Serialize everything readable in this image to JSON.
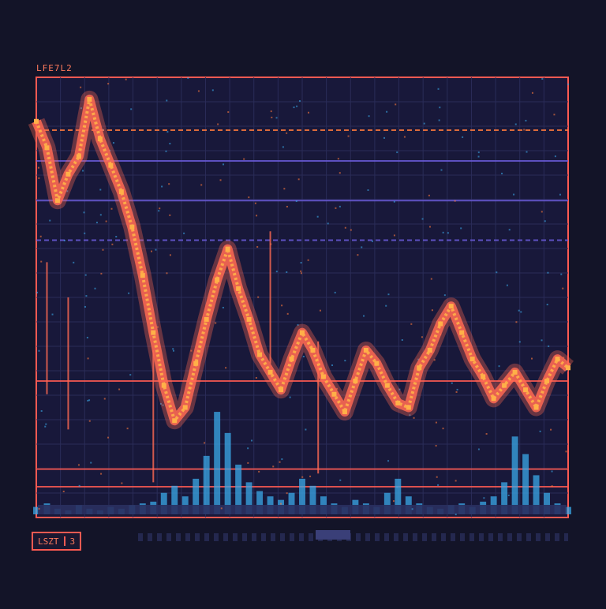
{
  "chart_data": {
    "type": "line",
    "title": "LFE7L2",
    "xlim": [
      0,
      100
    ],
    "ylim": [
      0,
      100
    ],
    "grid": true,
    "colors": {
      "background": "#131428",
      "plot_bg": "#18183a",
      "grid": "#2a2c58",
      "frame": "#ff5a52",
      "price": "#ff6a52",
      "price_highlight": "#ffb048",
      "volume": "#3aa8e8",
      "ref_orange": "#ff7a3c",
      "ref_purple": "#6a5ad8"
    },
    "price_series": {
      "x": [
        0,
        2,
        4,
        6,
        8,
        10,
        12,
        14,
        16,
        18,
        20,
        22,
        24,
        26,
        28,
        30,
        32,
        34,
        36,
        38,
        40,
        42,
        44,
        46,
        48,
        50,
        52,
        54,
        56,
        58,
        60,
        62,
        64,
        66,
        68,
        70,
        72,
        74,
        76,
        78,
        80,
        82,
        84,
        86,
        88,
        90,
        92,
        94,
        96,
        98,
        100
      ],
      "y": [
        90,
        84,
        72,
        78,
        82,
        95,
        86,
        80,
        74,
        66,
        55,
        42,
        30,
        22,
        25,
        35,
        45,
        54,
        61,
        52,
        45,
        37,
        33,
        29,
        36,
        42,
        38,
        32,
        28,
        24,
        31,
        38,
        35,
        30,
        26,
        25,
        34,
        38,
        44,
        48,
        42,
        36,
        32,
        27,
        30,
        33,
        29,
        25,
        31,
        36,
        34
      ]
    },
    "spikes": [
      {
        "x": 2,
        "y": 58
      },
      {
        "x": 6,
        "y": 50
      },
      {
        "x": 44,
        "y": 65
      },
      {
        "x": 53,
        "y": 40
      },
      {
        "x": 22,
        "y": 38
      }
    ],
    "volume_series": {
      "x": [
        0,
        2,
        4,
        6,
        8,
        10,
        12,
        14,
        16,
        18,
        20,
        22,
        24,
        26,
        28,
        30,
        32,
        34,
        36,
        38,
        40,
        42,
        44,
        46,
        48,
        50,
        52,
        54,
        56,
        58,
        60,
        62,
        64,
        66,
        68,
        70,
        72,
        74,
        76,
        78,
        80,
        82,
        84,
        86,
        88,
        90,
        92,
        94,
        96,
        98,
        100
      ],
      "y": [
        6,
        8,
        5,
        4,
        7,
        5,
        4,
        6,
        5,
        7,
        8,
        9,
        14,
        18,
        12,
        22,
        35,
        60,
        48,
        30,
        20,
        15,
        12,
        10,
        14,
        22,
        18,
        12,
        8,
        6,
        10,
        8,
        6,
        14,
        22,
        12,
        8,
        6,
        5,
        7,
        8,
        6,
        9,
        12,
        20,
        46,
        36,
        24,
        14,
        8,
        6
      ]
    },
    "reference_lines": [
      {
        "y": 88,
        "style": "dashed",
        "color": "#ff7a3c"
      },
      {
        "y": 81,
        "style": "solid",
        "color": "#6a5ad8"
      },
      {
        "y": 72,
        "style": "solid",
        "color": "#6a5ad8"
      },
      {
        "y": 63,
        "style": "dashed",
        "color": "#6a5ad8"
      },
      {
        "y": 31,
        "style": "solid",
        "color": "#ff5a52"
      },
      {
        "y": 11,
        "style": "solid",
        "color": "#ff5a52"
      },
      {
        "y": 7,
        "style": "solid",
        "color": "#ff5a52"
      }
    ],
    "footer": {
      "badge_left": "LSZT",
      "badge_right": "3"
    }
  }
}
